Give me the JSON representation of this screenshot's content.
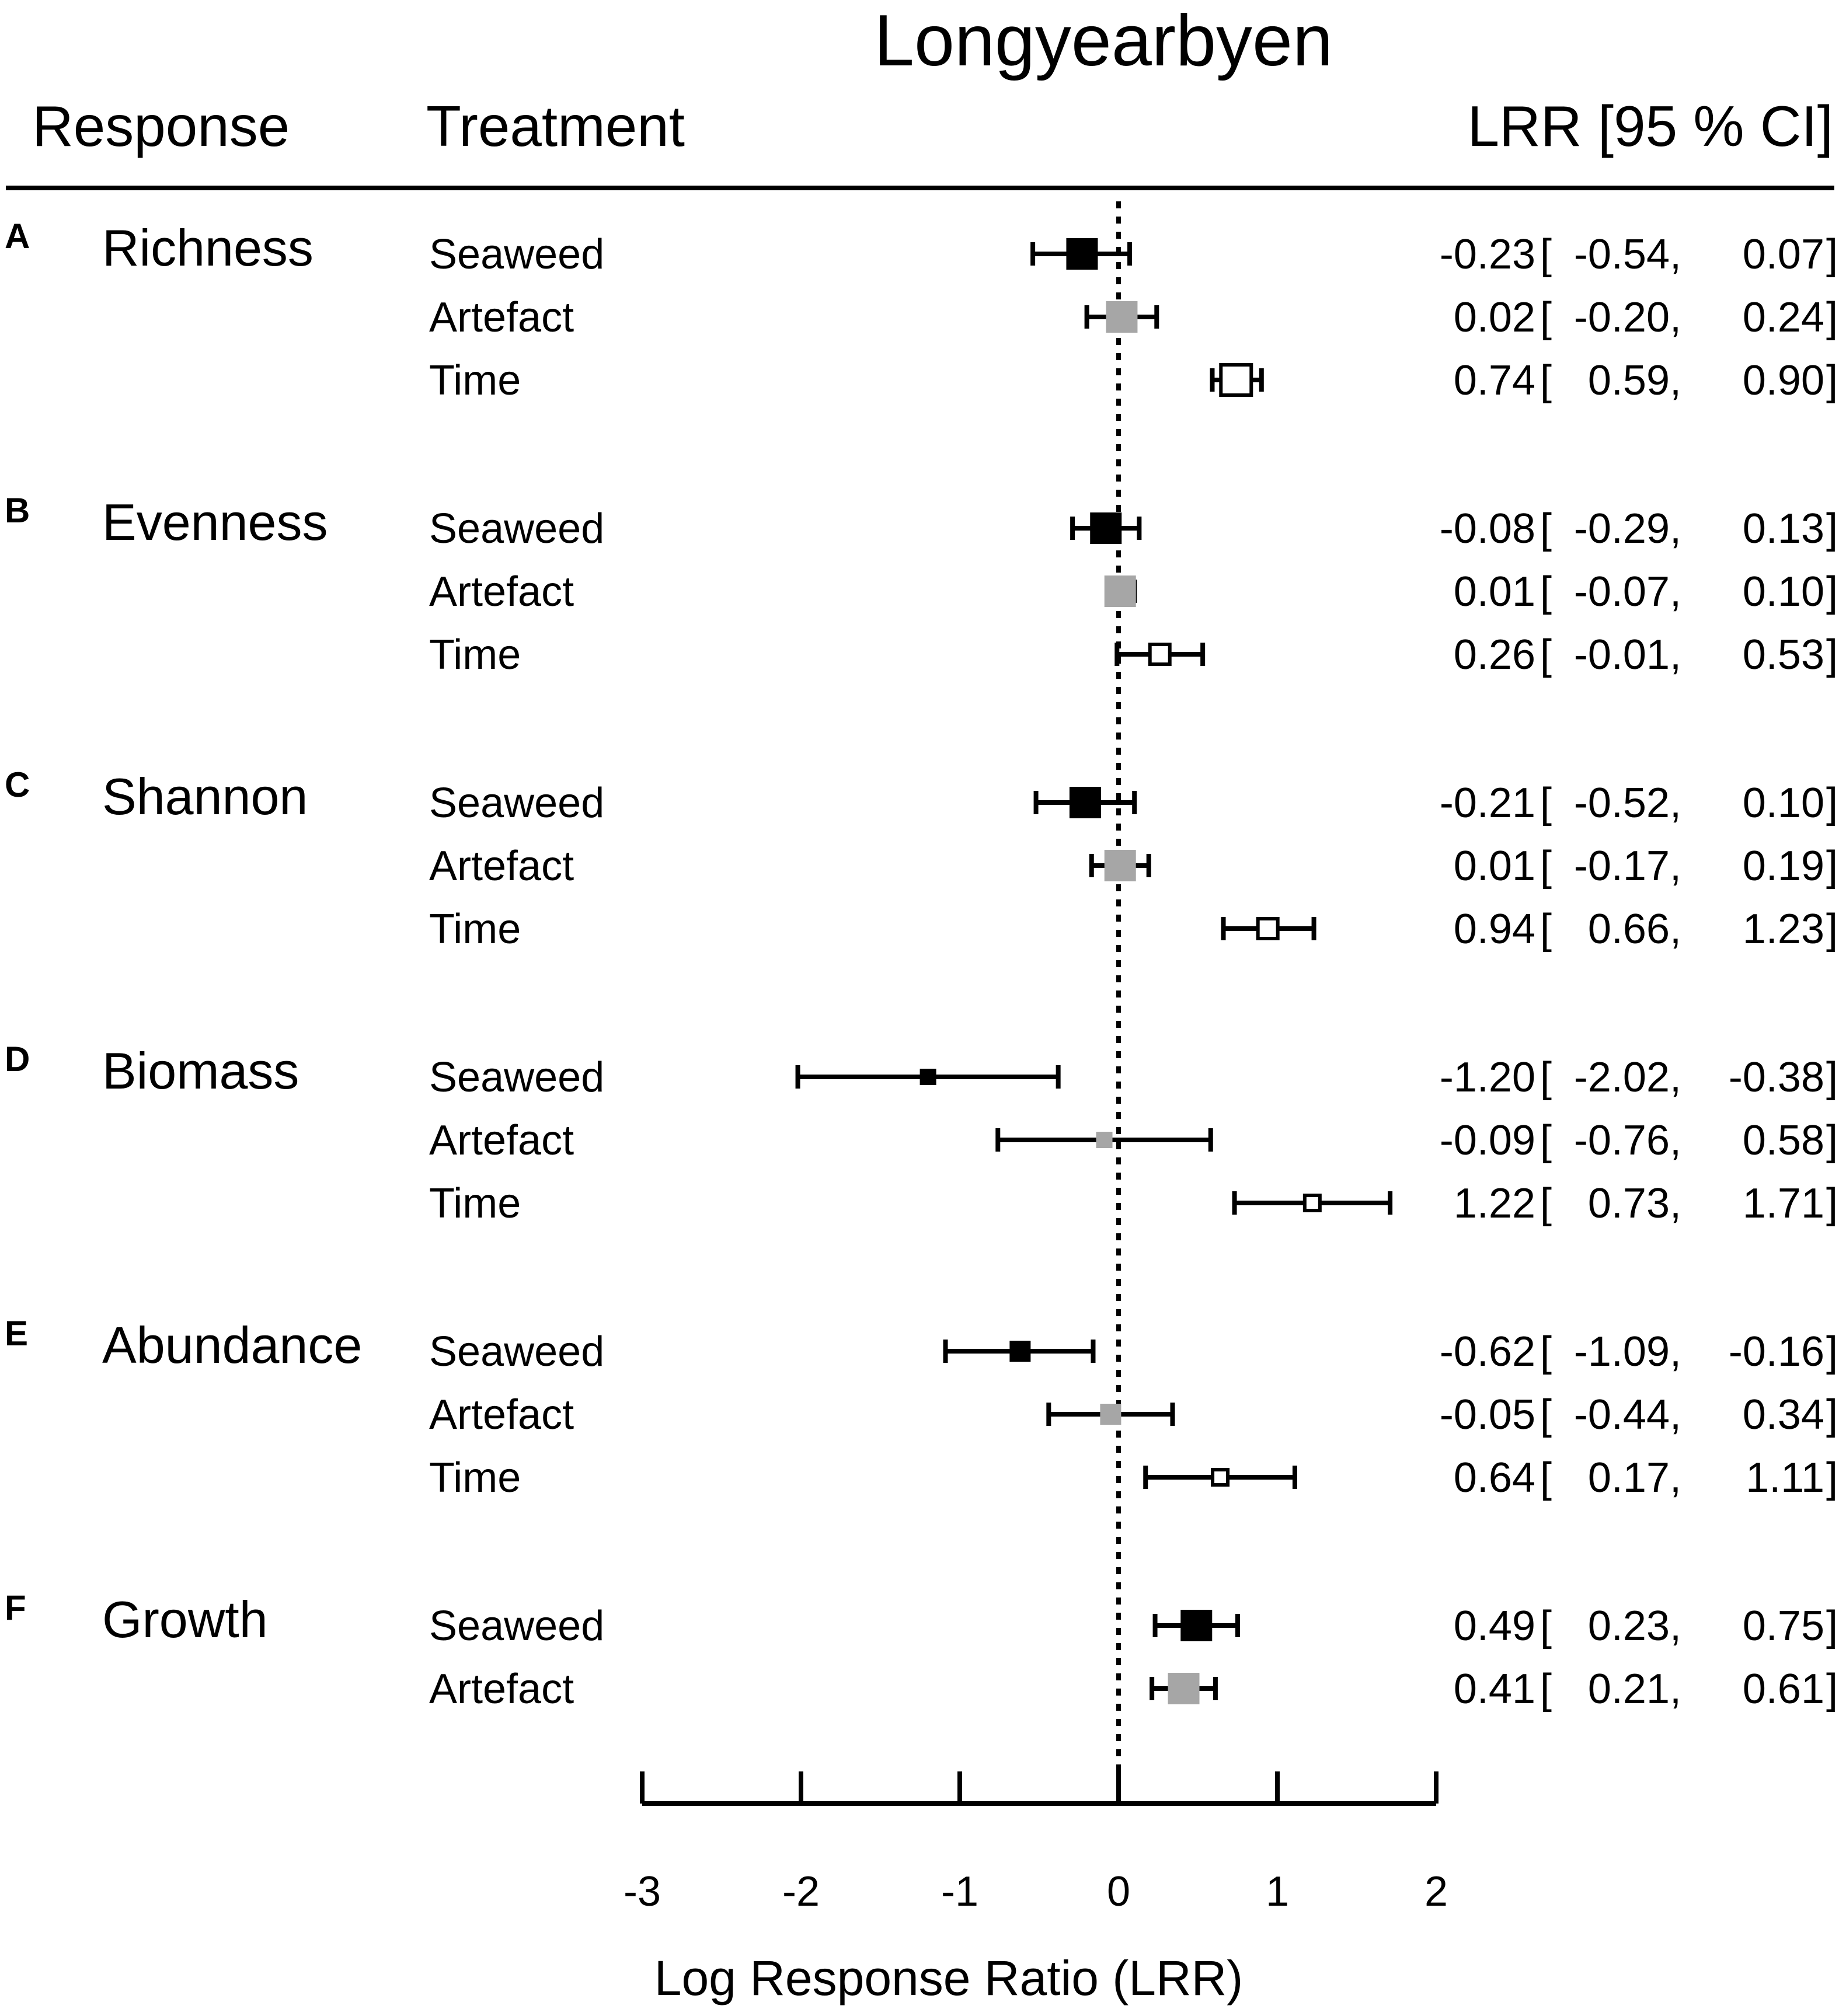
{
  "chart_data": {
    "type": "forest",
    "title": "Longyearbyen",
    "headers": {
      "response": "Response",
      "treatment": "Treatment",
      "stats": "LRR [95 % CI]"
    },
    "xlabel": "Log Response Ratio (LRR)",
    "xlim": [
      -3,
      2
    ],
    "xticks": [
      -3,
      -2,
      -1,
      0,
      1,
      2
    ],
    "reference_line": 0,
    "series_styles": {
      "Seaweed": {
        "fill": "#000000",
        "stroke": "#000000"
      },
      "Artefact": {
        "fill": "#a6a6a6",
        "stroke": "#a6a6a6"
      },
      "Time": {
        "fill": "#ffffff",
        "stroke": "#000000"
      }
    },
    "groups": [
      {
        "letter": "A",
        "response": "Richness",
        "rows": [
          {
            "treatment": "Seaweed",
            "lrr": -0.23,
            "lo": -0.54,
            "hi": 0.07,
            "lrr_text": "-0.23",
            "lo_text": "-0.54",
            "hi_text": "0.07",
            "size": 3
          },
          {
            "treatment": "Artefact",
            "lrr": 0.02,
            "lo": -0.2,
            "hi": 0.24,
            "lrr_text": "0.02",
            "lo_text": "-0.20",
            "hi_text": "0.24",
            "size": 3
          },
          {
            "treatment": "Time",
            "lrr": 0.74,
            "lo": 0.59,
            "hi": 0.9,
            "lrr_text": "0.74",
            "lo_text": "0.59",
            "hi_text": "0.90",
            "size": 3
          }
        ]
      },
      {
        "letter": "B",
        "response": "Evenness",
        "rows": [
          {
            "treatment": "Seaweed",
            "lrr": -0.08,
            "lo": -0.29,
            "hi": 0.13,
            "lrr_text": "-0.08",
            "lo_text": "-0.29",
            "hi_text": "0.13",
            "size": 3
          },
          {
            "treatment": "Artefact",
            "lrr": 0.01,
            "lo": -0.07,
            "hi": 0.1,
            "lrr_text": "0.01",
            "lo_text": "-0.07",
            "hi_text": "0.10",
            "size": 3
          },
          {
            "treatment": "Time",
            "lrr": 0.26,
            "lo": -0.01,
            "hi": 0.53,
            "lrr_text": "0.26",
            "lo_text": "-0.01",
            "hi_text": "0.53",
            "size": 2
          }
        ]
      },
      {
        "letter": "C",
        "response": "Shannon",
        "rows": [
          {
            "treatment": "Seaweed",
            "lrr": -0.21,
            "lo": -0.52,
            "hi": 0.1,
            "lrr_text": "-0.21",
            "lo_text": "-0.52",
            "hi_text": "0.10",
            "size": 3
          },
          {
            "treatment": "Artefact",
            "lrr": 0.01,
            "lo": -0.17,
            "hi": 0.19,
            "lrr_text": "0.01",
            "lo_text": "-0.17",
            "hi_text": "0.19",
            "size": 3
          },
          {
            "treatment": "Time",
            "lrr": 0.94,
            "lo": 0.66,
            "hi": 1.23,
            "lrr_text": "0.94",
            "lo_text": "0.66",
            "hi_text": "1.23",
            "size": 2
          }
        ]
      },
      {
        "letter": "D",
        "response": "Biomass",
        "rows": [
          {
            "treatment": "Seaweed",
            "lrr": -1.2,
            "lo": -2.02,
            "hi": -0.38,
            "lrr_text": "-1.20",
            "lo_text": "-2.02",
            "hi_text": "-0.38",
            "size": 1
          },
          {
            "treatment": "Artefact",
            "lrr": -0.09,
            "lo": -0.76,
            "hi": 0.58,
            "lrr_text": "-0.09",
            "lo_text": "-0.76",
            "hi_text": "0.58",
            "size": 1
          },
          {
            "treatment": "Time",
            "lrr": 1.22,
            "lo": 0.73,
            "hi": 1.71,
            "lrr_text": "1.22",
            "lo_text": "0.73",
            "hi_text": "1.71",
            "size": 1
          }
        ]
      },
      {
        "letter": "E",
        "response": "Abundance",
        "rows": [
          {
            "treatment": "Seaweed",
            "lrr": -0.62,
            "lo": -1.09,
            "hi": -0.16,
            "lrr_text": "-0.62",
            "lo_text": "-1.09",
            "hi_text": "-0.16",
            "size": 2
          },
          {
            "treatment": "Artefact",
            "lrr": -0.05,
            "lo": -0.44,
            "hi": 0.34,
            "lrr_text": "-0.05",
            "lo_text": "-0.44",
            "hi_text": "0.34",
            "size": 2
          },
          {
            "treatment": "Time",
            "lrr": 0.64,
            "lo": 0.17,
            "hi": 1.11,
            "lrr_text": "0.64",
            "lo_text": "0.17",
            "hi_text": "1.11",
            "size": 1
          }
        ]
      },
      {
        "letter": "F",
        "response": "Growth",
        "rows": [
          {
            "treatment": "Seaweed",
            "lrr": 0.49,
            "lo": 0.23,
            "hi": 0.75,
            "lrr_text": "0.49",
            "lo_text": "0.23",
            "hi_text": "0.75",
            "size": 3
          },
          {
            "treatment": "Artefact",
            "lrr": 0.41,
            "lo": 0.21,
            "hi": 0.61,
            "lrr_text": "0.41",
            "lo_text": "0.21",
            "hi_text": "0.61",
            "size": 3
          }
        ]
      }
    ]
  }
}
